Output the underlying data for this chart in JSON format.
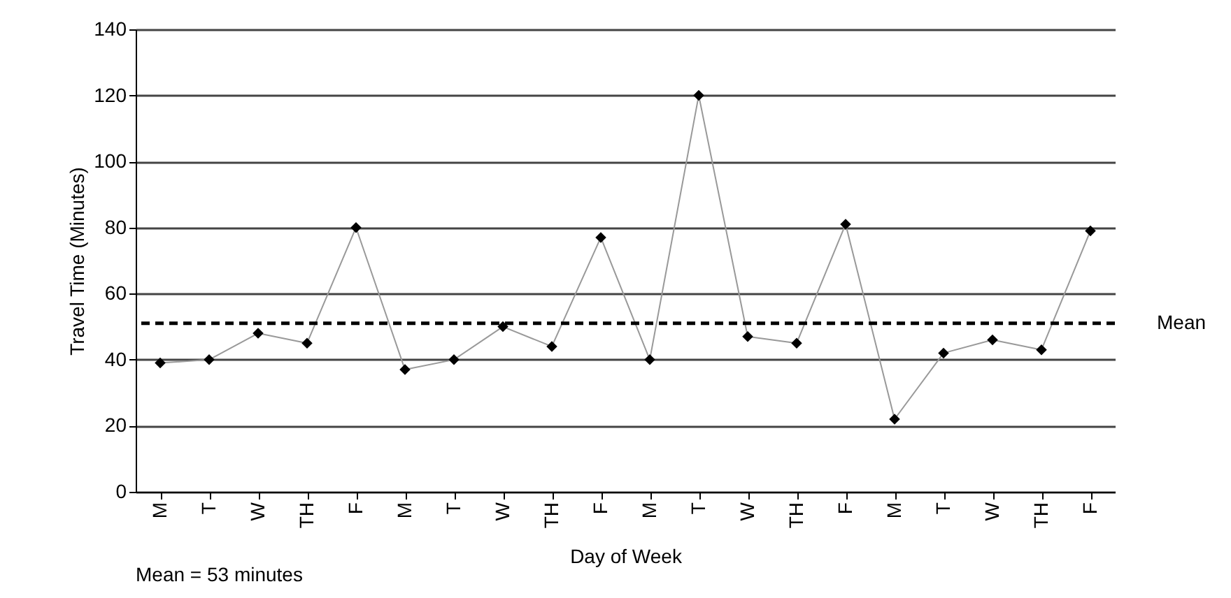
{
  "chart_data": {
    "type": "line",
    "xlabel": "Day of Week",
    "ylabel": "Travel Time (Minutes)",
    "categories": [
      "M",
      "T",
      "W",
      "TH",
      "F",
      "M",
      "T",
      "W",
      "TH",
      "F",
      "M",
      "T",
      "W",
      "TH",
      "F",
      "M",
      "T",
      "W",
      "TH",
      "F"
    ],
    "series": [
      {
        "color": "#000000",
        "values": [
          39,
          40,
          48,
          45,
          80,
          37,
          40,
          50,
          44,
          77,
          40,
          120,
          47,
          45,
          81,
          22,
          42,
          46,
          43,
          79
        ]
      }
    ],
    "ylim": [
      0,
      140
    ],
    "yticks": [
      0,
      20,
      40,
      60,
      80,
      100,
      120,
      140
    ],
    "grid": "y",
    "marker": "diamond",
    "ref_lines": [
      {
        "axis": "y",
        "value": 51,
        "label": "Mean",
        "color": "#000000",
        "line_style": "dashed"
      }
    ],
    "annotations": [
      "Mean = 53 minutes"
    ]
  }
}
